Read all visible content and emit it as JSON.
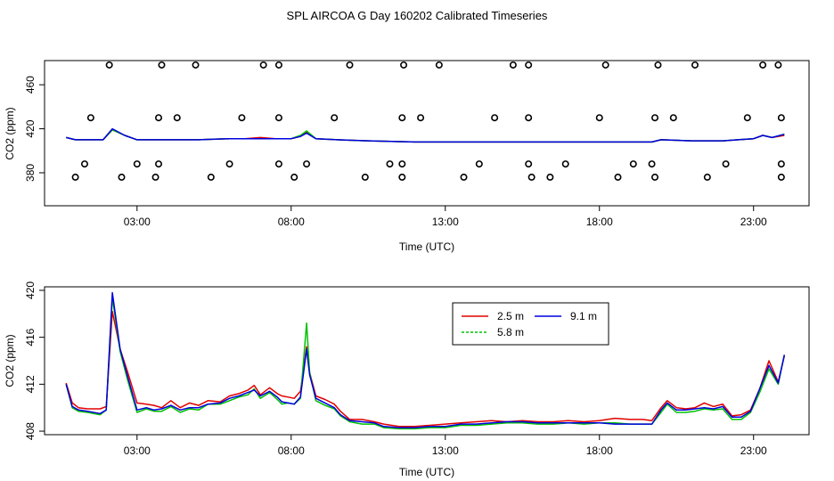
{
  "page_title": "SPL AIRCOA G  Day 160202  Calibrated Timeseries",
  "colors": {
    "2.5 m": "#e00000",
    "5.8 m": "#00c000",
    "9.1 m": "#0000e0",
    "axis": "#000000"
  },
  "chart_data": [
    {
      "type": "line",
      "xlabel": "Time (UTC)",
      "ylabel": "CO2 (ppm)",
      "x_unit": "hours UTC",
      "xlim": [
        0.0,
        24.8
      ],
      "ylim": [
        350,
        482
      ],
      "x_ticks": [
        3,
        8,
        13,
        18,
        23
      ],
      "x_tick_labels": [
        "03:00",
        "08:00",
        "13:00",
        "18:00",
        "23:00"
      ],
      "y_ticks": [
        380,
        420,
        460
      ],
      "y_tick_labels": [
        "380",
        "420",
        "460"
      ],
      "grid": false,
      "legend": "none",
      "series": [
        {
          "name": "2.5 m",
          "color": "#e00000",
          "x": [
            0.7,
            1.0,
            1.5,
            1.9,
            2.2,
            2.6,
            3.0,
            4.0,
            5.0,
            6.0,
            6.5,
            7.0,
            7.5,
            8.0,
            8.3,
            8.5,
            8.8,
            9.5,
            10.5,
            12,
            13,
            14,
            15,
            16,
            17,
            18,
            19,
            19.7,
            20,
            21,
            22,
            22.5,
            23,
            23.3,
            23.6,
            24.0
          ],
          "y": [
            412,
            410,
            410,
            410,
            419,
            414,
            410,
            410,
            410,
            411,
            411,
            412,
            411,
            411,
            413,
            417,
            411,
            410,
            409,
            408,
            408,
            408,
            408,
            408,
            408,
            408,
            408,
            408,
            410,
            409,
            409,
            410,
            411,
            414,
            412,
            414
          ]
        },
        {
          "name": "5.8 m",
          "color": "#00c000",
          "x": [
            0.7,
            1.0,
            1.5,
            1.9,
            2.2,
            2.6,
            3.0,
            4.0,
            5.0,
            6.0,
            6.5,
            7.0,
            7.5,
            8.0,
            8.3,
            8.5,
            8.8,
            9.5,
            10.5,
            12,
            13,
            14,
            15,
            16,
            17,
            18,
            19,
            19.7,
            20,
            21,
            22,
            22.5,
            23,
            23.3,
            23.6,
            24.0
          ],
          "y": [
            412,
            410,
            410,
            410,
            419,
            414,
            410,
            410,
            410,
            411,
            411,
            411,
            411,
            411,
            414,
            418,
            411,
            410,
            409,
            408,
            408,
            408,
            408,
            408,
            408,
            408,
            408,
            408,
            410,
            409,
            409,
            410,
            411,
            414,
            412,
            415
          ]
        },
        {
          "name": "9.1 m",
          "color": "#0000e0",
          "x": [
            0.7,
            1.0,
            1.5,
            1.9,
            2.2,
            2.6,
            3.0,
            4.0,
            5.0,
            6.0,
            6.5,
            7.0,
            7.5,
            8.0,
            8.3,
            8.5,
            8.8,
            9.5,
            10.5,
            12,
            13,
            14,
            15,
            16,
            17,
            18,
            19,
            19.7,
            20,
            21,
            22,
            22.5,
            23,
            23.3,
            23.6,
            24.0
          ],
          "y": [
            412,
            410,
            410,
            410,
            420,
            414,
            410,
            410,
            410,
            411,
            411,
            411,
            411,
            411,
            413,
            416,
            411,
            410,
            409,
            408,
            408,
            408,
            408,
            408,
            408,
            408,
            408,
            408,
            410,
            409,
            409,
            410,
            411,
            414,
            412,
            415
          ]
        }
      ],
      "circles": {
        "x": [
          2.1,
          3.8,
          4.9,
          7.1,
          7.6,
          9.9,
          11.65,
          12.8,
          15.2,
          15.7,
          18.2,
          19.9,
          21.1,
          23.3,
          23.8,
          1.5,
          3.7,
          4.3,
          6.4,
          7.6,
          9.4,
          11.6,
          12.2,
          14.6,
          15.7,
          18.0,
          19.8,
          20.4,
          22.8,
          23.9,
          1.0,
          1.3,
          2.5,
          3.0,
          3.6,
          3.7,
          5.4,
          6.0,
          7.6,
          8.1,
          8.5,
          10.4,
          11.2,
          11.6,
          11.6,
          13.6,
          14.1,
          15.7,
          15.8,
          16.4,
          16.9,
          18.6,
          19.1,
          19.7,
          19.8,
          21.5,
          22.1,
          23.9,
          23.9
        ],
        "y": [
          478,
          478,
          478,
          478,
          478,
          478,
          478,
          478,
          478,
          478,
          478,
          478,
          478,
          478,
          478,
          430,
          430,
          430,
          430,
          430,
          430,
          430,
          430,
          430,
          430,
          430,
          430,
          430,
          430,
          430,
          376,
          388,
          376,
          388,
          376,
          388,
          376,
          388,
          388,
          376,
          388,
          376,
          388,
          376,
          388,
          376,
          388,
          388,
          376,
          376,
          388,
          376,
          388,
          388,
          376,
          376,
          388,
          376,
          388
        ]
      }
    },
    {
      "type": "line",
      "xlabel": "Time (UTC)",
      "ylabel": "CO2 (ppm)",
      "x_unit": "hours UTC",
      "xlim": [
        0.0,
        24.8
      ],
      "ylim": [
        407.7,
        420.3
      ],
      "x_ticks": [
        3,
        8,
        13,
        18,
        23
      ],
      "x_tick_labels": [
        "03:00",
        "08:00",
        "13:00",
        "18:00",
        "23:00"
      ],
      "y_ticks": [
        408,
        412,
        416,
        420
      ],
      "y_tick_labels": [
        "408",
        "412",
        "416",
        "420"
      ],
      "grid": false,
      "legend": "top-center",
      "series": [
        {
          "name": "2.5 m",
          "color": "#e00000",
          "x": [
            0.7,
            0.9,
            1.1,
            1.4,
            1.8,
            2.0,
            2.2,
            2.45,
            2.7,
            3.0,
            3.3,
            3.55,
            3.8,
            4.1,
            4.4,
            4.7,
            5.0,
            5.3,
            5.7,
            6.0,
            6.3,
            6.6,
            6.8,
            7.0,
            7.3,
            7.55,
            7.7,
            7.9,
            8.1,
            8.3,
            8.5,
            8.6,
            8.8,
            9.1,
            9.4,
            9.6,
            9.9,
            10.3,
            10.7,
            11.0,
            11.5,
            12,
            12.5,
            13,
            13.5,
            14,
            14.5,
            15,
            15.5,
            16,
            16.5,
            17,
            17.5,
            18,
            18.5,
            19,
            19.4,
            19.7,
            20,
            20.2,
            20.5,
            20.8,
            21.1,
            21.4,
            21.7,
            22.0,
            22.3,
            22.6,
            22.9,
            23.2,
            23.5,
            23.8,
            24.0
          ],
          "y": [
            412.1,
            410.4,
            410.0,
            409.9,
            409.9,
            410.1,
            418.2,
            415.0,
            413.0,
            410.4,
            410.3,
            410.2,
            410.0,
            410.6,
            410.0,
            410.4,
            410.2,
            410.6,
            410.5,
            411.0,
            411.2,
            411.5,
            411.9,
            411.1,
            411.7,
            411.2,
            411.0,
            410.9,
            410.8,
            411.4,
            415.2,
            413.0,
            411.0,
            410.7,
            410.3,
            409.7,
            409.0,
            409.0,
            408.8,
            408.6,
            408.4,
            408.4,
            408.5,
            408.6,
            408.7,
            408.8,
            408.9,
            408.8,
            408.9,
            408.8,
            408.8,
            408.9,
            408.8,
            408.9,
            409.1,
            409.0,
            409.0,
            408.9,
            410.0,
            410.6,
            410.0,
            409.9,
            410.0,
            410.4,
            410.1,
            410.3,
            409.3,
            409.4,
            409.8,
            411.6,
            414.0,
            412.2,
            414.4
          ]
        },
        {
          "name": "5.8 m",
          "color": "#00c000",
          "x": [
            0.7,
            0.9,
            1.1,
            1.4,
            1.8,
            2.0,
            2.2,
            2.45,
            2.7,
            3.0,
            3.3,
            3.55,
            3.8,
            4.1,
            4.4,
            4.7,
            5.0,
            5.3,
            5.7,
            6.0,
            6.3,
            6.6,
            6.8,
            7.0,
            7.3,
            7.55,
            7.7,
            7.9,
            8.1,
            8.3,
            8.5,
            8.6,
            8.8,
            9.1,
            9.4,
            9.6,
            9.9,
            10.3,
            10.7,
            11.0,
            11.5,
            12,
            12.5,
            13,
            13.5,
            14,
            14.5,
            15,
            15.5,
            16,
            16.5,
            17,
            17.5,
            18,
            18.5,
            19,
            19.4,
            19.7,
            20,
            20.2,
            20.5,
            20.8,
            21.1,
            21.4,
            21.7,
            22.0,
            22.3,
            22.6,
            22.9,
            23.2,
            23.5,
            23.8,
            24.0
          ],
          "y": [
            412.0,
            410.0,
            409.7,
            409.6,
            409.4,
            409.8,
            419.4,
            414.8,
            412.3,
            409.6,
            409.9,
            409.7,
            409.7,
            410.1,
            409.6,
            409.9,
            409.8,
            410.3,
            410.3,
            410.6,
            410.9,
            411.1,
            411.6,
            410.8,
            411.3,
            410.7,
            410.3,
            410.4,
            410.3,
            410.8,
            417.2,
            413.0,
            410.6,
            410.2,
            409.9,
            409.3,
            408.8,
            408.6,
            408.6,
            408.3,
            408.2,
            408.2,
            408.3,
            408.3,
            408.5,
            408.5,
            408.6,
            408.7,
            408.7,
            408.6,
            408.6,
            408.7,
            408.6,
            408.7,
            408.7,
            408.6,
            408.6,
            408.6,
            409.6,
            410.3,
            409.6,
            409.6,
            409.7,
            409.9,
            409.8,
            409.9,
            409.0,
            409.0,
            409.6,
            411.3,
            413.3,
            412.0,
            414.5
          ]
        },
        {
          "name": "9.1 m",
          "color": "#0000e0",
          "x": [
            0.7,
            0.9,
            1.1,
            1.4,
            1.8,
            2.0,
            2.2,
            2.45,
            2.7,
            3.0,
            3.3,
            3.55,
            3.8,
            4.1,
            4.4,
            4.7,
            5.0,
            5.3,
            5.7,
            6.0,
            6.3,
            6.6,
            6.8,
            7.0,
            7.3,
            7.55,
            7.7,
            7.9,
            8.1,
            8.3,
            8.5,
            8.6,
            8.8,
            9.1,
            9.4,
            9.6,
            9.9,
            10.3,
            10.7,
            11.0,
            11.5,
            12,
            12.5,
            13,
            13.5,
            14,
            14.5,
            15,
            15.5,
            16,
            16.5,
            17,
            17.5,
            18,
            18.5,
            19,
            19.4,
            19.7,
            20,
            20.2,
            20.5,
            20.8,
            21.1,
            21.4,
            21.7,
            22.0,
            22.3,
            22.6,
            22.9,
            23.2,
            23.5,
            23.8,
            24.0
          ],
          "y": [
            412.0,
            410.1,
            409.8,
            409.7,
            409.5,
            409.8,
            419.8,
            415.0,
            412.6,
            409.8,
            410.0,
            409.8,
            409.9,
            410.2,
            409.8,
            410.0,
            410.0,
            410.3,
            410.4,
            410.8,
            411.0,
            411.3,
            411.5,
            411.0,
            411.4,
            410.9,
            410.5,
            410.4,
            410.3,
            410.9,
            415.0,
            412.8,
            410.8,
            410.4,
            410.0,
            409.4,
            408.9,
            408.8,
            408.7,
            408.4,
            408.3,
            408.3,
            408.4,
            408.4,
            408.6,
            408.6,
            408.7,
            408.8,
            408.8,
            408.7,
            408.7,
            408.7,
            408.7,
            408.7,
            408.6,
            408.6,
            408.6,
            408.6,
            409.8,
            410.4,
            409.8,
            409.8,
            409.9,
            410.0,
            409.9,
            410.1,
            409.2,
            409.2,
            409.7,
            411.6,
            413.6,
            412.1,
            414.5
          ]
        }
      ]
    }
  ]
}
